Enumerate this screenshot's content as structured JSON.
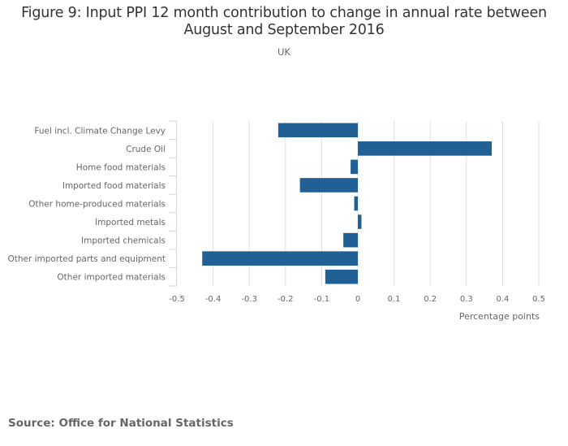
{
  "chart_data": {
    "type": "bar",
    "orientation": "horizontal",
    "title": "Figure 9: Input PPI 12 month contribution to change in annual rate between August and September 2016",
    "subtitle": "UK",
    "categories": [
      "Fuel incl. Climate Change Levy",
      "Crude Oil",
      "Home food materials",
      "Imported food materials",
      "Other home-produced materials",
      "Imported metals",
      "Imported chemicals",
      "Other imported parts and equipment",
      "Other imported materials"
    ],
    "values": [
      -0.22,
      0.37,
      -0.02,
      -0.16,
      -0.01,
      0.01,
      -0.04,
      -0.43,
      -0.09
    ],
    "xlabel": "Percentage points",
    "ylabel": "",
    "xlim": [
      -0.5,
      0.5
    ],
    "xticks": [
      -0.5,
      -0.4,
      -0.3,
      -0.2,
      -0.1,
      0,
      0.1,
      0.2,
      0.3,
      0.4,
      0.5
    ],
    "xtick_labels": [
      "-0.5",
      "-0.4",
      "-0.3",
      "-0.2",
      "-0.1",
      "0",
      "0.1",
      "0.2",
      "0.3",
      "0.4",
      "0.5"
    ],
    "grid": true,
    "legend": "none",
    "bar_color": "#206095",
    "source": "Source: Office for National Statistics"
  }
}
